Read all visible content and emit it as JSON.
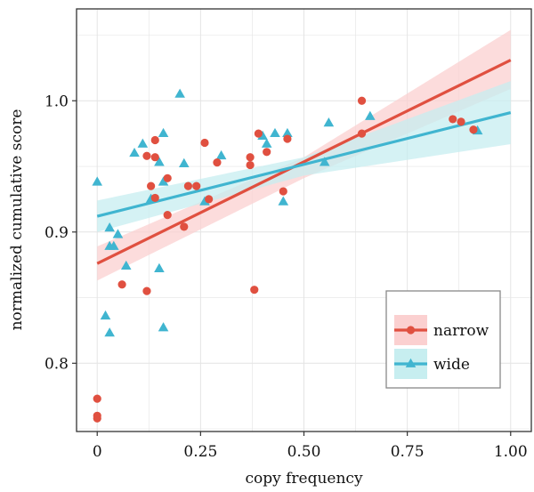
{
  "chart_data": {
    "type": "scatter",
    "title": "",
    "xlabel": "copy frequency",
    "ylabel": "normalized cumulative score",
    "xlim": [
      -0.05,
      1.05
    ],
    "ylim": [
      0.748,
      1.07
    ],
    "x_ticks": [
      0,
      0.25,
      0.5,
      0.75,
      1.0
    ],
    "x_tick_labels": [
      "0",
      "0.25",
      "0.50",
      "0.75",
      "1.00"
    ],
    "y_ticks": [
      0.8,
      0.9,
      1.0
    ],
    "y_tick_labels": [
      "0.8",
      "0.9",
      "1.0"
    ],
    "grid": true,
    "legend_position": "bottom-right",
    "series": [
      {
        "name": "narrow",
        "color": "#E05040",
        "band_color": "#FBD0D0",
        "marker": "circle",
        "points": [
          [
            0.0,
            0.773
          ],
          [
            0.0,
            0.76
          ],
          [
            0.0,
            0.758
          ],
          [
            0.06,
            0.86
          ],
          [
            0.12,
            0.855
          ],
          [
            0.12,
            0.958
          ],
          [
            0.13,
            0.935
          ],
          [
            0.14,
            0.97
          ],
          [
            0.14,
            0.957
          ],
          [
            0.14,
            0.926
          ],
          [
            0.17,
            0.941
          ],
          [
            0.17,
            0.913
          ],
          [
            0.21,
            0.904
          ],
          [
            0.22,
            0.935
          ],
          [
            0.24,
            0.935
          ],
          [
            0.26,
            0.968
          ],
          [
            0.27,
            0.925
          ],
          [
            0.29,
            0.953
          ],
          [
            0.37,
            0.957
          ],
          [
            0.37,
            0.951
          ],
          [
            0.38,
            0.856
          ],
          [
            0.39,
            0.975
          ],
          [
            0.41,
            0.961
          ],
          [
            0.45,
            0.931
          ],
          [
            0.46,
            0.971
          ],
          [
            0.64,
            1.0
          ],
          [
            0.64,
            0.975
          ],
          [
            0.86,
            0.986
          ],
          [
            0.88,
            0.984
          ],
          [
            0.91,
            0.978
          ]
        ],
        "fit": {
          "x0": 0.0,
          "y0": 0.876,
          "x1": 1.0,
          "y1": 1.031
        },
        "band": {
          "lower": [
            0.863,
            0.941,
            1.009
          ],
          "upper": [
            0.889,
            0.957,
            1.054
          ]
        }
      },
      {
        "name": "wide",
        "color": "#40B5D0",
        "band_color": "#C7EEF0",
        "marker": "triangle",
        "points": [
          [
            0.0,
            0.938
          ],
          [
            0.02,
            0.836
          ],
          [
            0.03,
            0.823
          ],
          [
            0.03,
            0.903
          ],
          [
            0.03,
            0.889
          ],
          [
            0.04,
            0.889
          ],
          [
            0.05,
            0.898
          ],
          [
            0.07,
            0.874
          ],
          [
            0.09,
            0.96
          ],
          [
            0.11,
            0.967
          ],
          [
            0.13,
            0.925
          ],
          [
            0.15,
            0.953
          ],
          [
            0.15,
            0.872
          ],
          [
            0.16,
            0.827
          ],
          [
            0.16,
            0.938
          ],
          [
            0.16,
            0.975
          ],
          [
            0.2,
            1.005
          ],
          [
            0.21,
            0.952
          ],
          [
            0.26,
            0.923
          ],
          [
            0.3,
            0.958
          ],
          [
            0.4,
            0.973
          ],
          [
            0.41,
            0.967
          ],
          [
            0.43,
            0.975
          ],
          [
            0.45,
            0.923
          ],
          [
            0.46,
            0.975
          ],
          [
            0.55,
            0.953
          ],
          [
            0.56,
            0.983
          ],
          [
            0.66,
            0.988
          ],
          [
            0.92,
            0.977
          ]
        ],
        "fit": {
          "x0": 0.0,
          "y0": 0.912,
          "x1": 1.0,
          "y1": 0.991
        },
        "band": {
          "lower": [
            0.9,
            0.943,
            0.967
          ],
          "upper": [
            0.924,
            0.957,
            1.015
          ]
        }
      }
    ]
  }
}
